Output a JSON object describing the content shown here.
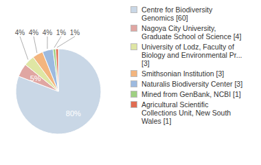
{
  "chart_data": {
    "type": "pie",
    "categories": [
      "Centre for Biodiversity Genomics [60]",
      "Nagoya City University, Graduate School of Science [4]",
      "University of Lodz, Faculty of Biology and Environmental Pr... [3]",
      "Smithsonian Institution [3]",
      "Naturalis Biodiversity Center [3]",
      "Mined from GenBank, NCBI [1]",
      "Agricultural Scientific Collections Unit, New South Wales [1]"
    ],
    "values": [
      80,
      5,
      4,
      4,
      4,
      1,
      1
    ],
    "value_labels": [
      "80%",
      "5%",
      "4%",
      "4%",
      "4%",
      "1%",
      "1%"
    ],
    "colors": [
      "#c9d7e6",
      "#e0a6a2",
      "#dfe6a4",
      "#f3b57e",
      "#9dbadf",
      "#9fd083",
      "#e06c52"
    ],
    "data_labels": true,
    "legend": "right"
  }
}
